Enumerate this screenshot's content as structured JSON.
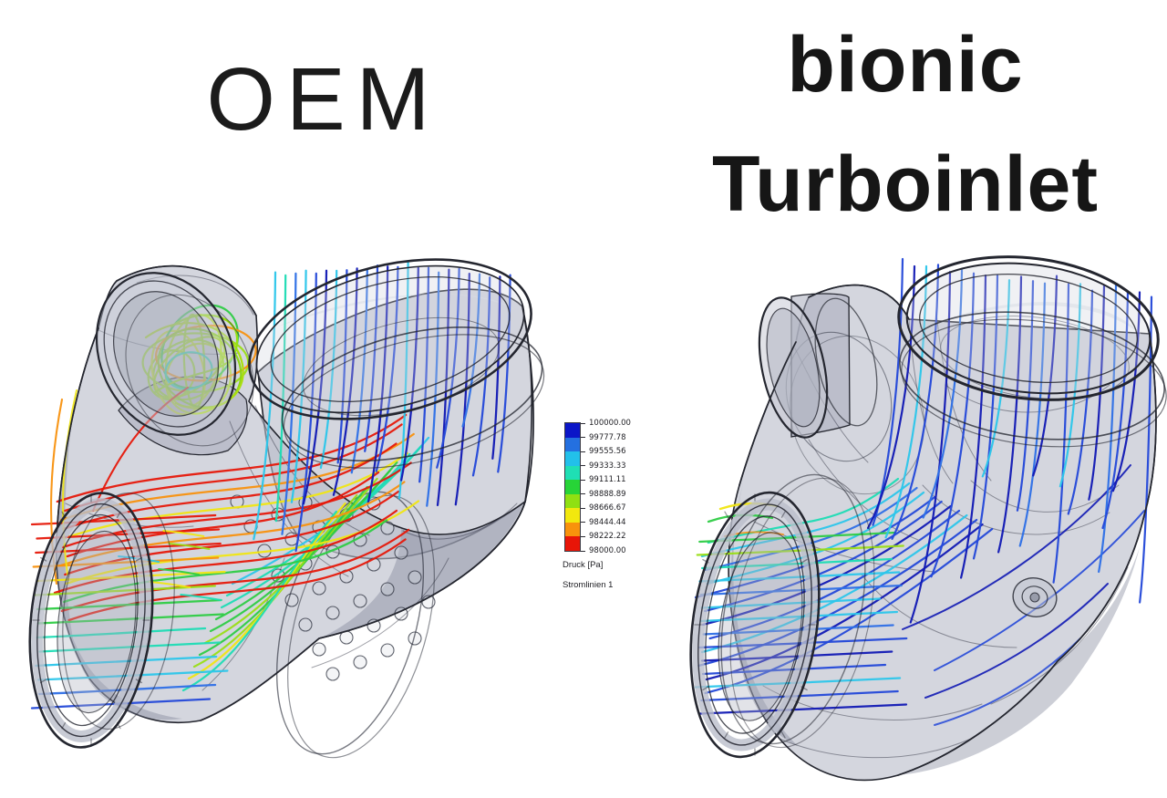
{
  "titles": {
    "left": "OEM",
    "right_line1": "bionic",
    "right_line2": "Turboinlet"
  },
  "legend": {
    "tick_values": [
      "100000.00",
      "99777.78",
      "99555.56",
      "99333.33",
      "99111.11",
      "98888.89",
      "98666.67",
      "98444.44",
      "98222.22",
      "98000.00"
    ],
    "segment_colors_top_to_bottom": [
      "#0b16c8",
      "#2470e0",
      "#22c0ea",
      "#1fdfb4",
      "#27d437",
      "#90e012",
      "#f2e80e",
      "#f8920c",
      "#e81508"
    ],
    "quantity_label": "Druck [Pa]",
    "result_label": "Stromlinien 1"
  },
  "palette": {
    "blue_navy": "#1119b4",
    "blue": "#2348d8",
    "blue_med": "#2e6fe6",
    "cyan": "#2cc6ea",
    "teal": "#1edcb4",
    "green": "#2ecc44",
    "green_yellow": "#9ade16",
    "yellow": "#f0e612",
    "orange": "#f8910e",
    "red": "#e6180a",
    "body_fill": "#b7bbc8",
    "body_shade": "#9aa0b2",
    "body_light": "#d8dbe4",
    "edge": "#24262f"
  }
}
